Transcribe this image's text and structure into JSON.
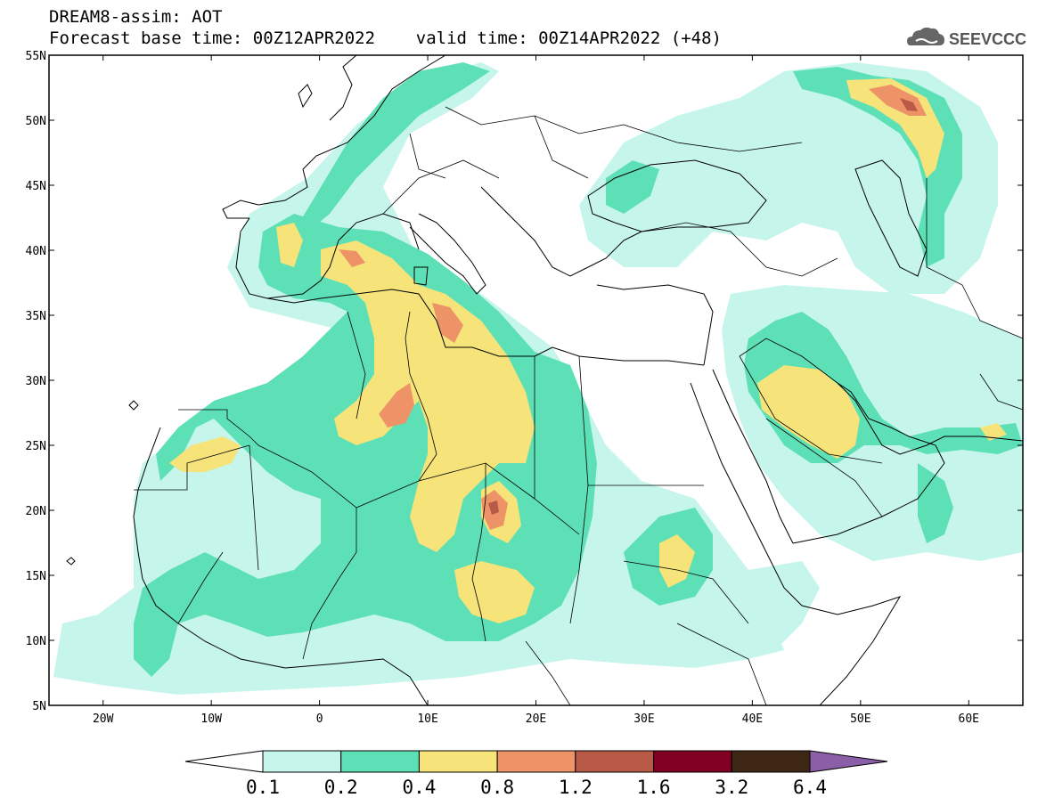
{
  "header": {
    "title": "DREAM8-assim: AOT",
    "subtitle": "Forecast base time: 00Z12APR2022    valid time: 00Z14APR2022 (+48)"
  },
  "logo": {
    "text": "SEEVCCC",
    "icon": "cloud-icon"
  },
  "map": {
    "lon_range": [
      -25,
      65
    ],
    "lat_range": [
      5,
      55
    ],
    "x_ticks": [
      {
        "lon": -20,
        "label": "20W"
      },
      {
        "lon": -10,
        "label": "10W"
      },
      {
        "lon": 0,
        "label": "0"
      },
      {
        "lon": 10,
        "label": "10E"
      },
      {
        "lon": 20,
        "label": "20E"
      },
      {
        "lon": 30,
        "label": "30E"
      },
      {
        "lon": 40,
        "label": "40E"
      },
      {
        "lon": 50,
        "label": "50E"
      },
      {
        "lon": 60,
        "label": "60E"
      }
    ],
    "y_ticks": [
      {
        "lat": 55,
        "label": "55N"
      },
      {
        "lat": 50,
        "label": "50N"
      },
      {
        "lat": 45,
        "label": "45N"
      },
      {
        "lat": 40,
        "label": "40N"
      },
      {
        "lat": 35,
        "label": "35N"
      },
      {
        "lat": 30,
        "label": "30N"
      },
      {
        "lat": 25,
        "label": "25N"
      },
      {
        "lat": 20,
        "label": "20N"
      },
      {
        "lat": 15,
        "label": "15N"
      },
      {
        "lat": 10,
        "label": "10N"
      },
      {
        "lat": 5,
        "label": "5N"
      }
    ]
  },
  "colorbar": {
    "labels": [
      "0.1",
      "0.2",
      "0.4",
      "0.8",
      "1.2",
      "1.6",
      "3.2",
      "6.4"
    ],
    "colors": [
      "#ffffff",
      "#c6f5ec",
      "#5ee0b6",
      "#f6e37a",
      "#ee9368",
      "#b85a46",
      "#7f0023",
      "#3f2716",
      "#8a5fa8"
    ]
  }
}
